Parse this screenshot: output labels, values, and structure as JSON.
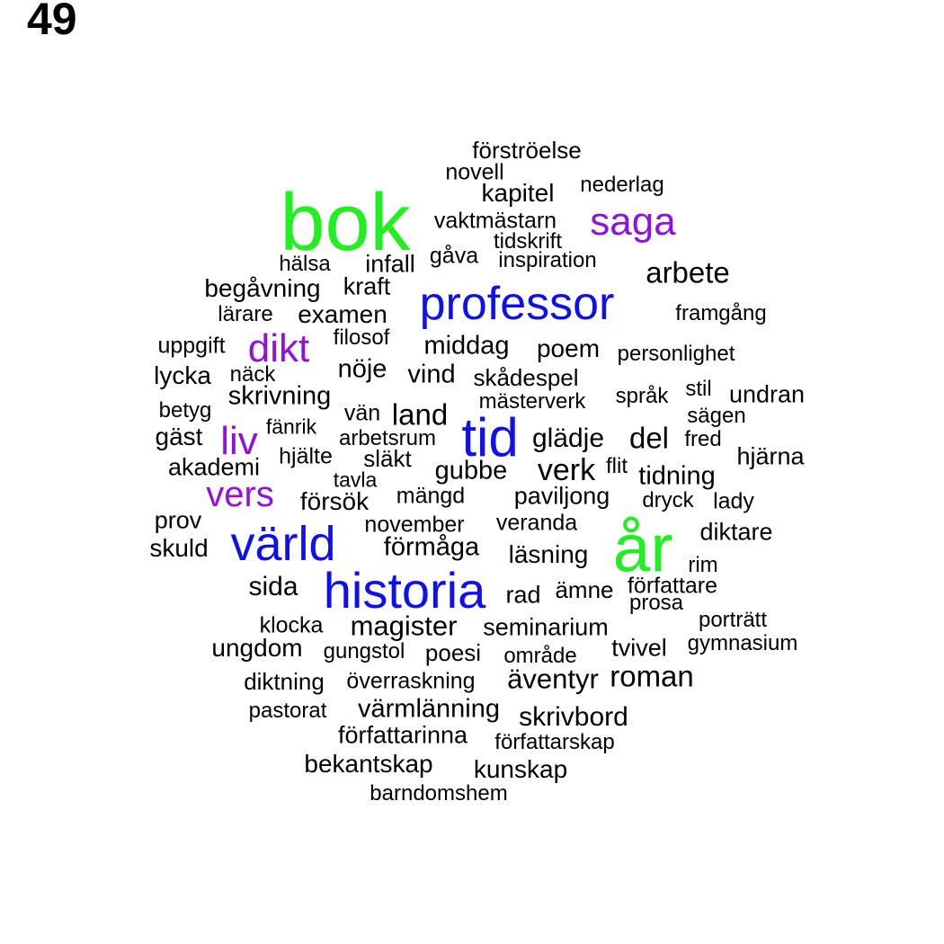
{
  "page_number": "49",
  "colors": {
    "large": "#22ee22",
    "medium": "#1010ee",
    "accent": "#9010dd",
    "base": "#000000"
  },
  "words": [
    {
      "text": "förströelse",
      "tier": "base"
    },
    {
      "text": "novell",
      "tier": "base"
    },
    {
      "text": "kapitel",
      "tier": "base"
    },
    {
      "text": "nederlag",
      "tier": "base"
    },
    {
      "text": "bok",
      "tier": "large"
    },
    {
      "text": "vaktmästarn",
      "tier": "base"
    },
    {
      "text": "saga",
      "tier": "accent"
    },
    {
      "text": "tidskrift",
      "tier": "base"
    },
    {
      "text": "gåva",
      "tier": "base"
    },
    {
      "text": "inspiration",
      "tier": "base"
    },
    {
      "text": "hälsa",
      "tier": "base"
    },
    {
      "text": "infall",
      "tier": "base"
    },
    {
      "text": "arbete",
      "tier": "base"
    },
    {
      "text": "begåvning",
      "tier": "base"
    },
    {
      "text": "kraft",
      "tier": "base"
    },
    {
      "text": "professor",
      "tier": "medium"
    },
    {
      "text": "lärare",
      "tier": "base"
    },
    {
      "text": "examen",
      "tier": "base"
    },
    {
      "text": "framgång",
      "tier": "base"
    },
    {
      "text": "uppgift",
      "tier": "base"
    },
    {
      "text": "dikt",
      "tier": "accent"
    },
    {
      "text": "filosof",
      "tier": "base"
    },
    {
      "text": "middag",
      "tier": "base"
    },
    {
      "text": "poem",
      "tier": "base"
    },
    {
      "text": "personlighet",
      "tier": "base"
    },
    {
      "text": "lycka",
      "tier": "base"
    },
    {
      "text": "näck",
      "tier": "base"
    },
    {
      "text": "nöje",
      "tier": "base"
    },
    {
      "text": "vind",
      "tier": "base"
    },
    {
      "text": "skådespel",
      "tier": "base"
    },
    {
      "text": "skrivning",
      "tier": "base"
    },
    {
      "text": "mästerverk",
      "tier": "base"
    },
    {
      "text": "språk",
      "tier": "base"
    },
    {
      "text": "stil",
      "tier": "base"
    },
    {
      "text": "undran",
      "tier": "base"
    },
    {
      "text": "betyg",
      "tier": "base"
    },
    {
      "text": "vän",
      "tier": "base"
    },
    {
      "text": "land",
      "tier": "base"
    },
    {
      "text": "sägen",
      "tier": "base"
    },
    {
      "text": "fänrik",
      "tier": "base"
    },
    {
      "text": "tid",
      "tier": "medium"
    },
    {
      "text": "gäst",
      "tier": "base"
    },
    {
      "text": "liv",
      "tier": "accent"
    },
    {
      "text": "arbetsrum",
      "tier": "base"
    },
    {
      "text": "glädje",
      "tier": "base"
    },
    {
      "text": "del",
      "tier": "base"
    },
    {
      "text": "fred",
      "tier": "base"
    },
    {
      "text": "hjärna",
      "tier": "base"
    },
    {
      "text": "hjälte",
      "tier": "base"
    },
    {
      "text": "släkt",
      "tier": "base"
    },
    {
      "text": "akademi",
      "tier": "base"
    },
    {
      "text": "gubbe",
      "tier": "base"
    },
    {
      "text": "verk",
      "tier": "base"
    },
    {
      "text": "flit",
      "tier": "base"
    },
    {
      "text": "tidning",
      "tier": "base"
    },
    {
      "text": "tavla",
      "tier": "base"
    },
    {
      "text": "vers",
      "tier": "accent"
    },
    {
      "text": "försök",
      "tier": "base"
    },
    {
      "text": "mängd",
      "tier": "base"
    },
    {
      "text": "paviljong",
      "tier": "base"
    },
    {
      "text": "dryck",
      "tier": "base"
    },
    {
      "text": "lady",
      "tier": "base"
    },
    {
      "text": "prov",
      "tier": "base"
    },
    {
      "text": "november",
      "tier": "base"
    },
    {
      "text": "veranda",
      "tier": "base"
    },
    {
      "text": "år",
      "tier": "large"
    },
    {
      "text": "diktare",
      "tier": "base"
    },
    {
      "text": "skuld",
      "tier": "base"
    },
    {
      "text": "värld",
      "tier": "medium"
    },
    {
      "text": "förmåga",
      "tier": "base"
    },
    {
      "text": "läsning",
      "tier": "base"
    },
    {
      "text": "rim",
      "tier": "base"
    },
    {
      "text": "sida",
      "tier": "base"
    },
    {
      "text": "historia",
      "tier": "medium"
    },
    {
      "text": "rad",
      "tier": "base"
    },
    {
      "text": "ämne",
      "tier": "base"
    },
    {
      "text": "författare",
      "tier": "base"
    },
    {
      "text": "prosa",
      "tier": "base"
    },
    {
      "text": "porträtt",
      "tier": "base"
    },
    {
      "text": "klocka",
      "tier": "base"
    },
    {
      "text": "magister",
      "tier": "base"
    },
    {
      "text": "seminarium",
      "tier": "base"
    },
    {
      "text": "gymnasium",
      "tier": "base"
    },
    {
      "text": "ungdom",
      "tier": "base"
    },
    {
      "text": "gungstol",
      "tier": "base"
    },
    {
      "text": "poesi",
      "tier": "base"
    },
    {
      "text": "område",
      "tier": "base"
    },
    {
      "text": "tvivel",
      "tier": "base"
    },
    {
      "text": "diktning",
      "tier": "base"
    },
    {
      "text": "överraskning",
      "tier": "base"
    },
    {
      "text": "äventyr",
      "tier": "base"
    },
    {
      "text": "roman",
      "tier": "base"
    },
    {
      "text": "pastorat",
      "tier": "base"
    },
    {
      "text": "värmlänning",
      "tier": "base"
    },
    {
      "text": "skrivbord",
      "tier": "base"
    },
    {
      "text": "författarinna",
      "tier": "base"
    },
    {
      "text": "författarskap",
      "tier": "base"
    },
    {
      "text": "bekantskap",
      "tier": "base"
    },
    {
      "text": "kunskap",
      "tier": "base"
    },
    {
      "text": "barndomshem",
      "tier": "base"
    }
  ]
}
